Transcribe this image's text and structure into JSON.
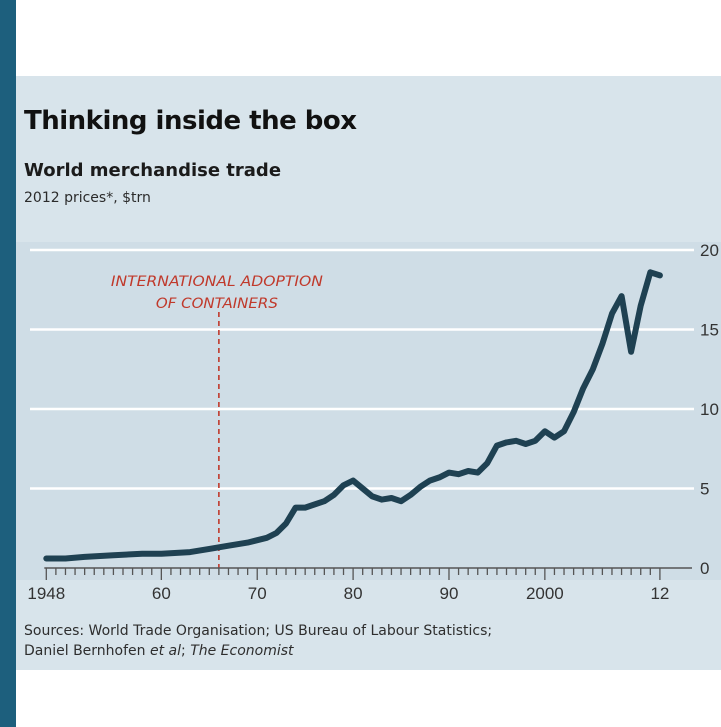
{
  "title": "Thinking inside the box",
  "subtitle": "World merchandise trade",
  "units": "2012 prices*, $trn",
  "annotation": {
    "line1": "INTERNATIONAL ADOPTION",
    "line2": "OF CONTAINERS",
    "x": 1966
  },
  "sources": {
    "line1": "Sources: World Trade Organisation; US Bureau of Labour Statistics;",
    "line2_plain": "Daniel Bernhofen ",
    "line2_italic1": "et al",
    "line2_sep": "; ",
    "line2_italic2": "The Economist"
  },
  "colors": {
    "line": "#1f4152",
    "annotation": "#c0392b",
    "panel": "#d8e4eb",
    "plot_bg": "#cfdde6",
    "grid": "#ffffff",
    "frame": "#1d5f7d"
  },
  "chart_data": {
    "type": "line",
    "title": "Thinking inside the box",
    "subtitle": "World merchandise trade",
    "ylabel": "2012 prices*, $trn",
    "xlim": [
      1946.3,
      2014.2
    ],
    "ylim": [
      0,
      20
    ],
    "yticks": [
      0,
      5,
      10,
      15,
      20
    ],
    "xtick_labels": [
      {
        "x": 1948,
        "label": "1948"
      },
      {
        "x": 1960,
        "label": "60"
      },
      {
        "x": 1970,
        "label": "70"
      },
      {
        "x": 1980,
        "label": "80"
      },
      {
        "x": 1990,
        "label": "90"
      },
      {
        "x": 2000,
        "label": "2000"
      },
      {
        "x": 2012,
        "label": "12"
      }
    ],
    "grid": true,
    "series": [
      {
        "x": [
          1948,
          1950,
          1952,
          1955,
          1958,
          1960,
          1963,
          1965,
          1967,
          1969,
          1971,
          1972,
          1973,
          1974,
          1975,
          1976,
          1977,
          1978,
          1979,
          1980,
          1981,
          1982,
          1983,
          1984,
          1985,
          1986,
          1987,
          1988,
          1989,
          1990,
          1991,
          1992,
          1993,
          1994,
          1995,
          1996,
          1997,
          1998,
          1999,
          2000,
          2001,
          2002,
          2003,
          2004,
          2005,
          2006,
          2007,
          2008,
          2009,
          2010,
          2011,
          2012
        ],
        "values": [
          0.6,
          0.6,
          0.7,
          0.8,
          0.9,
          0.9,
          1.0,
          1.2,
          1.4,
          1.6,
          1.9,
          2.2,
          2.8,
          3.8,
          3.8,
          4.0,
          4.2,
          4.6,
          5.2,
          5.5,
          5.0,
          4.5,
          4.3,
          4.4,
          4.2,
          4.6,
          5.1,
          5.5,
          5.7,
          6.0,
          5.9,
          6.1,
          6.0,
          6.6,
          7.7,
          7.9,
          8.0,
          7.8,
          8.0,
          8.6,
          8.2,
          8.6,
          9.8,
          11.3,
          12.5,
          14.1,
          16.0,
          17.1,
          13.6,
          16.5,
          18.6,
          18.4
        ]
      }
    ]
  }
}
